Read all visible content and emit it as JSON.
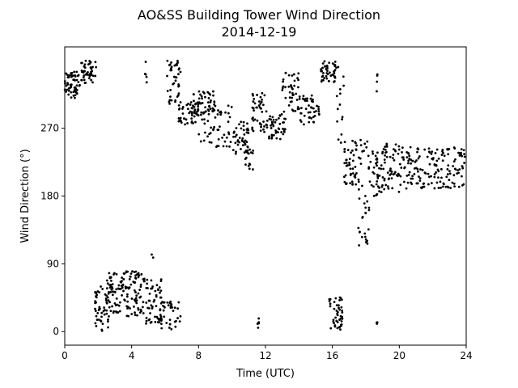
{
  "chart_data": {
    "type": "scatter",
    "title": "AO&SS Building Tower Wind Direction",
    "subtitle": "2014-12-19",
    "xlabel": "Time (UTC)",
    "ylabel": "Wind Direction (°)",
    "xlim": [
      0,
      24
    ],
    "ylim": [
      -18,
      378
    ],
    "xticks": [
      0,
      4,
      8,
      12,
      16,
      20,
      24
    ],
    "yticks": [
      0,
      90,
      180,
      270
    ],
    "grid": false,
    "marker_color": "#000000",
    "clusters": [
      {
        "x": [
          0.0,
          0.9
        ],
        "y": [
          310,
          345
        ],
        "n": 60
      },
      {
        "x": [
          0.9,
          1.9
        ],
        "y": [
          330,
          360
        ],
        "n": 45
      },
      {
        "x": [
          4.8,
          4.9
        ],
        "y": [
          330,
          360
        ],
        "n": 5
      },
      {
        "x": [
          6.1,
          7.0
        ],
        "y": [
          300,
          360
        ],
        "n": 40
      },
      {
        "x": [
          6.8,
          8.0
        ],
        "y": [
          275,
          305
        ],
        "n": 45
      },
      {
        "x": [
          7.5,
          9.0
        ],
        "y": [
          290,
          320
        ],
        "n": 50
      },
      {
        "x": [
          8.0,
          10.0
        ],
        "y": [
          245,
          300
        ],
        "n": 55
      },
      {
        "x": [
          10.0,
          11.0
        ],
        "y": [
          235,
          280
        ],
        "n": 45
      },
      {
        "x": [
          10.8,
          11.3
        ],
        "y": [
          215,
          245
        ],
        "n": 15
      },
      {
        "x": [
          11.2,
          12.2
        ],
        "y": [
          265,
          320
        ],
        "n": 45
      },
      {
        "x": [
          12.2,
          13.2
        ],
        "y": [
          255,
          290
        ],
        "n": 45
      },
      {
        "x": [
          13.0,
          14.0
        ],
        "y": [
          290,
          345
        ],
        "n": 40
      },
      {
        "x": [
          14.0,
          15.3
        ],
        "y": [
          275,
          315
        ],
        "n": 45
      },
      {
        "x": [
          15.3,
          16.2
        ],
        "y": [
          330,
          360
        ],
        "n": 45
      },
      {
        "x": [
          16.2,
          16.7
        ],
        "y": [
          250,
          360
        ],
        "n": 15
      },
      {
        "x": [
          16.7,
          17.5
        ],
        "y": [
          195,
          255
        ],
        "n": 45
      },
      {
        "x": [
          17.5,
          18.2
        ],
        "y": [
          110,
          255
        ],
        "n": 40
      },
      {
        "x": [
          18.2,
          18.8
        ],
        "y": [
          180,
          245
        ],
        "n": 30
      },
      {
        "x": [
          18.8,
          20.0
        ],
        "y": [
          185,
          255
        ],
        "n": 60
      },
      {
        "x": [
          20.0,
          24.0
        ],
        "y": [
          190,
          245
        ],
        "n": 160
      },
      {
        "x": [
          1.8,
          2.6
        ],
        "y": [
          0,
          60
        ],
        "n": 45
      },
      {
        "x": [
          2.5,
          4.8
        ],
        "y": [
          20,
          80
        ],
        "n": 140
      },
      {
        "x": [
          4.8,
          5.8
        ],
        "y": [
          10,
          70
        ],
        "n": 55
      },
      {
        "x": [
          5.2,
          5.3
        ],
        "y": [
          95,
          105
        ],
        "n": 2
      },
      {
        "x": [
          5.6,
          7.0
        ],
        "y": [
          0,
          40
        ],
        "n": 40
      },
      {
        "x": [
          11.5,
          11.6
        ],
        "y": [
          5,
          30
        ],
        "n": 6
      },
      {
        "x": [
          15.8,
          16.6
        ],
        "y": [
          0,
          50
        ],
        "n": 45
      },
      {
        "x": [
          18.6,
          18.7
        ],
        "y": [
          10,
          15
        ],
        "n": 3
      },
      {
        "x": [
          18.6,
          18.7
        ],
        "y": [
          310,
          345
        ],
        "n": 4
      }
    ]
  }
}
